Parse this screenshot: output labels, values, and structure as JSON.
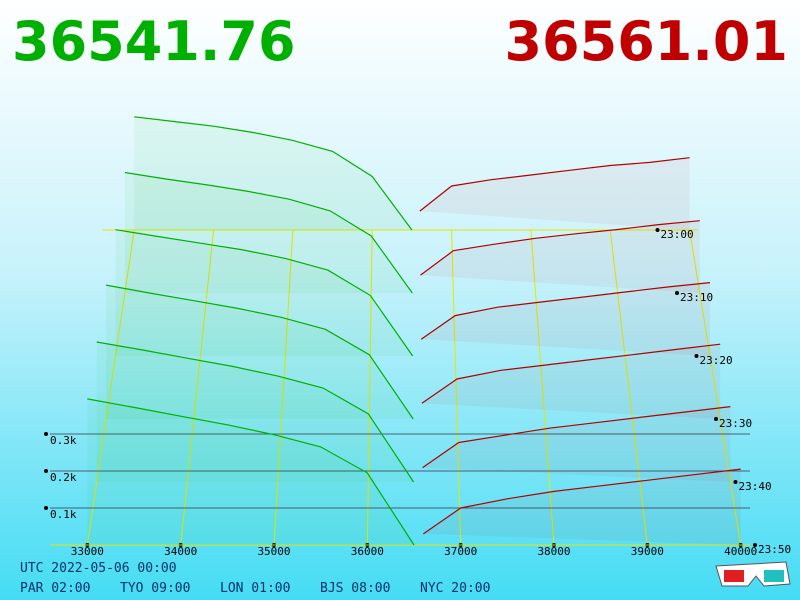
{
  "header": {
    "bid_price": "36541.76",
    "ask_price": "36561.01"
  },
  "chart_data": {
    "type": "depth3d",
    "bid_color": "#00b000",
    "ask_color": "#b00000",
    "floor_color": "#e6e600",
    "xlim": [
      32600,
      40100
    ],
    "xticks": [
      33000,
      34000,
      35000,
      36000,
      37000,
      38000,
      39000,
      40000
    ],
    "depth_ticks": [
      {
        "value": 100,
        "label": "0.1k"
      },
      {
        "value": 200,
        "label": "0.2k"
      },
      {
        "value": 300,
        "label": "0.3k"
      }
    ],
    "times": [
      "23:00",
      "23:10",
      "23:20",
      "23:30",
      "23:40",
      "23:50"
    ],
    "bid_prices": [
      33000,
      33500,
      34000,
      34500,
      35000,
      35500,
      36000,
      36500
    ],
    "ask_prices": [
      36600,
      37000,
      37500,
      38000,
      38500,
      39000,
      39500,
      40000
    ],
    "snapshots": [
      {
        "bids": [
          360,
          345,
          330,
          310,
          285,
          250,
          170,
          0
        ],
        "asks": [
          60,
          140,
          160,
          175,
          190,
          205,
          215,
          230
        ]
      },
      {
        "bids": [
          370,
          350,
          332,
          312,
          288,
          252,
          175,
          0
        ],
        "asks": [
          55,
          130,
          150,
          168,
          182,
          195,
          210,
          222
        ]
      },
      {
        "bids": [
          375,
          355,
          335,
          315,
          290,
          255,
          180,
          0
        ],
        "asks": [
          50,
          120,
          145,
          160,
          175,
          190,
          205,
          218
        ]
      },
      {
        "bids": [
          385,
          362,
          340,
          318,
          292,
          258,
          185,
          0
        ],
        "asks": [
          45,
          115,
          140,
          155,
          170,
          185,
          200,
          215
        ]
      },
      {
        "bids": [
          390,
          368,
          345,
          322,
          295,
          262,
          190,
          0
        ],
        "asks": [
          40,
          110,
          130,
          150,
          165,
          180,
          195,
          210
        ]
      },
      {
        "bids": [
          395,
          372,
          348,
          325,
          298,
          265,
          195,
          0
        ],
        "asks": [
          30,
          100,
          125,
          145,
          160,
          175,
          190,
          205
        ]
      }
    ]
  },
  "footer": {
    "utc": "UTC 2022-05-06 00:00",
    "zones": [
      "PAR 02:00",
      "TYO 09:00",
      "LON 01:00",
      "BJS 08:00",
      "NYC 20:00"
    ]
  }
}
